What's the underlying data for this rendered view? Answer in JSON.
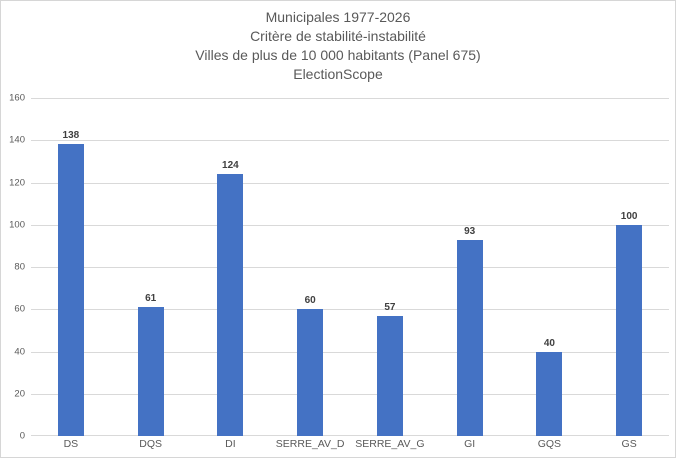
{
  "title": {
    "line1": "Municipales 1977-2026",
    "line2": "Critère de stabilité-instabilité",
    "line3": "Villes de plus de 10 000 habitants (Panel 675)",
    "line4": "ElectionScope"
  },
  "chart_data": {
    "type": "bar",
    "categories": [
      "DS",
      "DQS",
      "DI",
      "SERRE_AV_D",
      "SERRE_AV_G",
      "GI",
      "GQS",
      "GS"
    ],
    "values": [
      138,
      61,
      124,
      60,
      57,
      93,
      40,
      100
    ],
    "title": "Municipales 1977-2026 — Critère de stabilité-instabilité — Villes de plus de 10 000 habitants (Panel 675) — ElectionScope",
    "xlabel": "",
    "ylabel": "",
    "ylim": [
      0,
      160
    ],
    "yticks": [
      0,
      20,
      40,
      60,
      80,
      100,
      120,
      140,
      160
    ],
    "grid": true,
    "legend": "none",
    "data_labels": true
  },
  "colors": {
    "bar": "#4472C4",
    "title_text": "#595959",
    "axis_text": "#595959",
    "data_label_text": "#404040",
    "gridline": "#D9D9D9",
    "background": "#FFFFFF",
    "border": "#D6D6D6"
  }
}
